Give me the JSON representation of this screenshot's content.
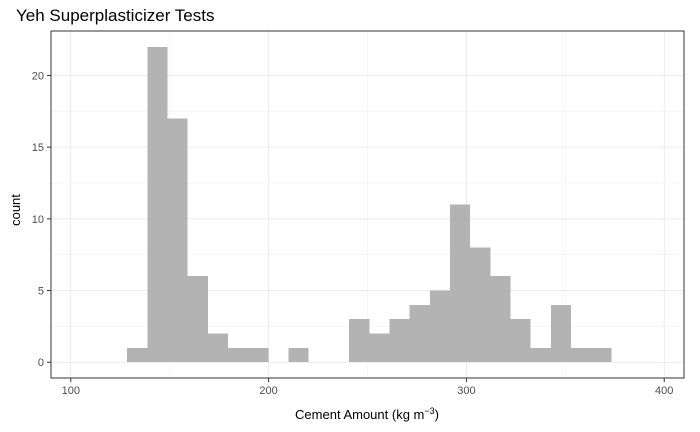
{
  "chart_data": {
    "type": "bar",
    "title": "Yeh Superplasticizer Tests",
    "xlabel": "Cement Amount (kg m",
    "xlabel_superscript": "−3",
    "xlabel_suffix": ")",
    "ylabel": "count",
    "xlim": [
      90,
      410
    ],
    "ylim": [
      -1.1,
      23.1
    ],
    "x_ticks": [
      100,
      200,
      300,
      400
    ],
    "y_ticks": [
      0,
      5,
      10,
      15,
      20
    ],
    "bin_width": 10.2,
    "bins": [
      {
        "start": 128.5,
        "count": 1
      },
      {
        "start": 138.7,
        "count": 22
      },
      {
        "start": 148.9,
        "count": 17
      },
      {
        "start": 159.1,
        "count": 6
      },
      {
        "start": 169.3,
        "count": 2
      },
      {
        "start": 179.5,
        "count": 1
      },
      {
        "start": 189.7,
        "count": 1
      },
      {
        "start": 210.1,
        "count": 1
      },
      {
        "start": 240.7,
        "count": 3
      },
      {
        "start": 250.9,
        "count": 2
      },
      {
        "start": 261.1,
        "count": 3
      },
      {
        "start": 271.3,
        "count": 4
      },
      {
        "start": 281.5,
        "count": 5
      },
      {
        "start": 291.7,
        "count": 11
      },
      {
        "start": 301.9,
        "count": 8
      },
      {
        "start": 312.1,
        "count": 6
      },
      {
        "start": 322.3,
        "count": 3
      },
      {
        "start": 332.5,
        "count": 1
      },
      {
        "start": 342.7,
        "count": 4
      },
      {
        "start": 352.9,
        "count": 1
      },
      {
        "start": 363.1,
        "count": 1
      }
    ],
    "grid": true,
    "colors": {
      "bar": "#b3b3b3",
      "grid_major": "#ebebeb",
      "grid_minor": "#f4f4f4",
      "panel_border": "#333333"
    }
  }
}
